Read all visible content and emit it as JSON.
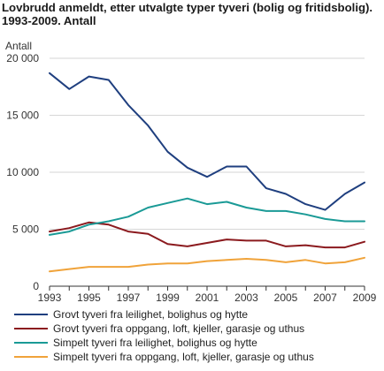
{
  "chart_data": {
    "type": "line",
    "title": "Lovbrudd anmeldt, etter utvalgte typer tyveri (bolig og fritidsbolig). 1993-2009. Antall",
    "ylabel": "Antall",
    "xlabel": "",
    "x": [
      1993,
      1994,
      1995,
      1996,
      1997,
      1998,
      1999,
      2000,
      2001,
      2002,
      2003,
      2004,
      2005,
      2006,
      2007,
      2008,
      2009
    ],
    "x_tick_labels": [
      "1993",
      "1995",
      "1997",
      "1999",
      "2001",
      "2003",
      "2005",
      "2007",
      "2009"
    ],
    "y_tick_labels": [
      "0",
      "5 000",
      "10 000",
      "15 000",
      "20 000"
    ],
    "y_ticks": [
      0,
      5000,
      10000,
      15000,
      20000
    ],
    "ylim": [
      0,
      20000
    ],
    "grid": true,
    "legend_placement": "bottom",
    "series": [
      {
        "name": "Grovt tyveri fra leilighet, bolighus og hytte",
        "color": "#1f3f7f",
        "values": [
          18700,
          17300,
          18400,
          18100,
          15900,
          14100,
          11800,
          10400,
          9600,
          10500,
          10500,
          8600,
          8100,
          7200,
          6700,
          8100,
          9100
        ]
      },
      {
        "name": "Grovt tyveri fra oppgang, loft, kjeller, garasje og uthus",
        "color": "#8b1a1e",
        "values": [
          4800,
          5100,
          5600,
          5400,
          4800,
          4600,
          3700,
          3500,
          3800,
          4100,
          4000,
          4000,
          3500,
          3600,
          3400,
          3400,
          3900
        ]
      },
      {
        "name": "Simpelt tyveri fra leilighet, bolighus og hytte",
        "color": "#1a9a96",
        "values": [
          4500,
          4800,
          5400,
          5700,
          6100,
          6900,
          7300,
          7700,
          7200,
          7400,
          6900,
          6600,
          6600,
          6300,
          5900,
          5700,
          5700
        ]
      },
      {
        "name": "Simpelt tyveri fra oppgang, loft, kjeller, garasje og uthus",
        "color": "#f0a33a",
        "values": [
          1300,
          1500,
          1700,
          1700,
          1700,
          1900,
          2000,
          2000,
          2200,
          2300,
          2400,
          2300,
          2100,
          2300,
          2000,
          2100,
          2500
        ]
      }
    ]
  }
}
